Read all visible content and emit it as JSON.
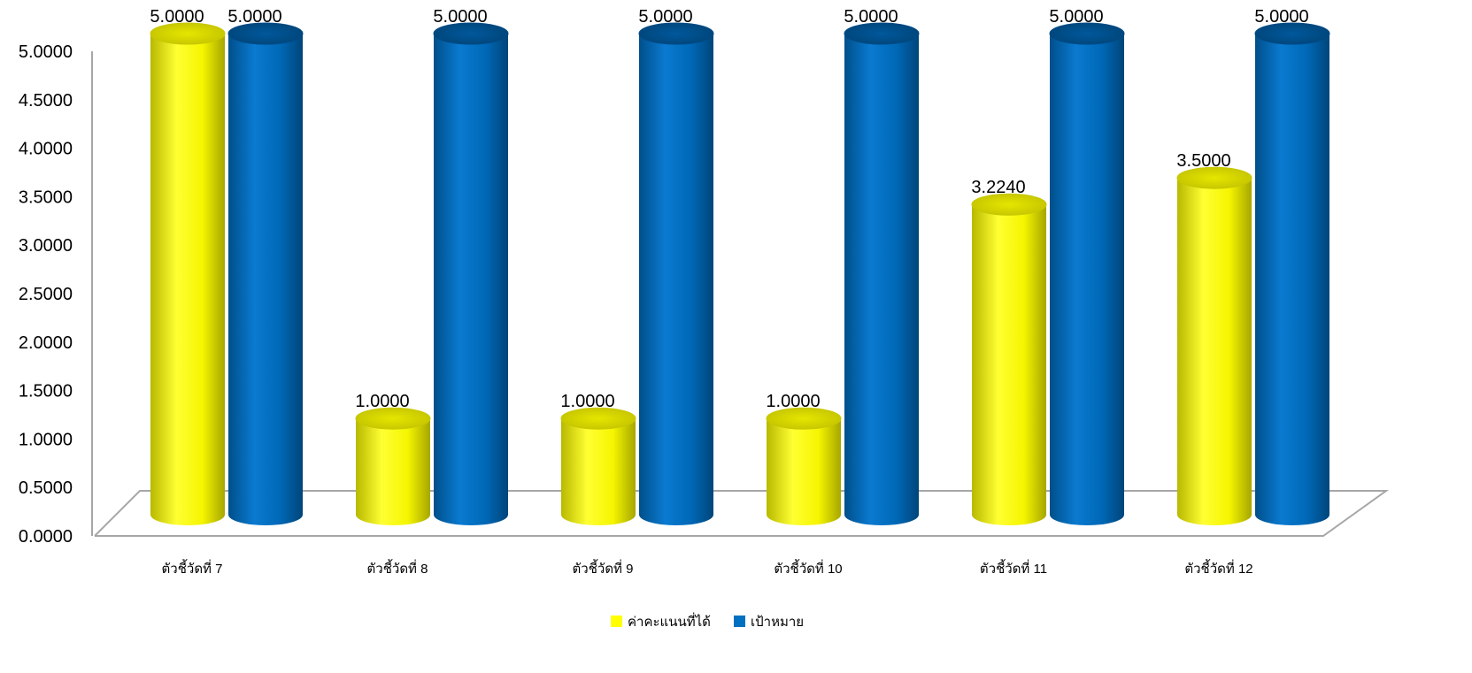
{
  "chart_data": {
    "type": "bar",
    "style": "3d-cylinder",
    "categories": [
      "ตัวชี้วัดที่ 7",
      "ตัวชี้วัดที่ 8",
      "ตัวชี้วัดที่ 9",
      "ตัวชี้วัดที่ 10",
      "ตัวชี้วัดที่ 11",
      "ตัวชี้วัดที่ 12"
    ],
    "series": [
      {
        "name": "ค่าคะแนนที่ได้",
        "color": "#FFFF00",
        "values": [
          5.0,
          1.0,
          1.0,
          1.0,
          3.224,
          3.5
        ],
        "labels": [
          "5.0000",
          "1.0000",
          "1.0000",
          "1.0000",
          "3.2240",
          "3.5000"
        ]
      },
      {
        "name": "เป้าหมาย",
        "color": "#0070C0",
        "values": [
          5.0,
          5.0,
          5.0,
          5.0,
          5.0,
          5.0
        ],
        "labels": [
          "5.0000",
          "5.0000",
          "5.0000",
          "5.0000",
          "5.0000",
          "5.0000"
        ]
      }
    ],
    "ylim": [
      0,
      5
    ],
    "yticks": [
      "0.0000",
      "0.5000",
      "1.0000",
      "1.5000",
      "2.0000",
      "2.5000",
      "3.0000",
      "3.5000",
      "4.0000",
      "4.5000",
      "5.0000"
    ],
    "grid": false,
    "legend_position": "bottom"
  }
}
